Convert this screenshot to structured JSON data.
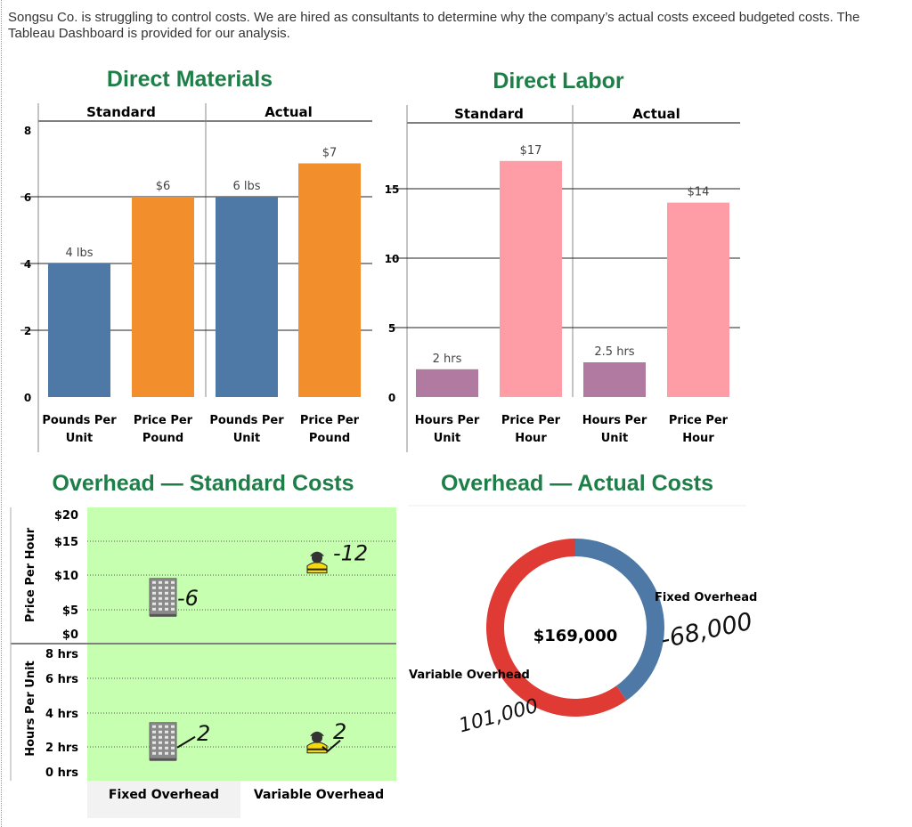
{
  "intro_text": "Songsu Co. is struggling to control costs. We are hired as consultants to determine why the company’s actual costs exceed budgeted costs. The Tableau Dashboard is provided for our analysis.",
  "colors": {
    "title_green": "#1e7e47",
    "blue": "#4e79a7",
    "orange": "#f28e2b",
    "purple": "#b07aa1",
    "pink": "#ff9da7",
    "red": "#e03a34",
    "panel_green": "#c6ffb0"
  },
  "chart_data": [
    {
      "type": "bar",
      "title": "Direct Materials",
      "panels": [
        "Standard",
        "Actual"
      ],
      "categories": [
        "Pounds Per Unit",
        "Price Per Pound",
        "Pounds Per Unit",
        "Price Per Pound"
      ],
      "values": [
        4,
        6,
        6,
        7
      ],
      "data_labels": [
        "4 lbs",
        "$6",
        "6 lbs",
        "$7"
      ],
      "ylim": [
        0,
        9
      ],
      "yticks": [
        "0",
        "2",
        "4",
        "6",
        "8"
      ],
      "grid": true
    },
    {
      "type": "bar",
      "title": "Direct Labor",
      "panels": [
        "Standard",
        "Actual"
      ],
      "categories": [
        "Hours Per Unit",
        "Price Per Hour",
        "Hours Per Unit",
        "Price Per Hour"
      ],
      "values": [
        2,
        17,
        2.5,
        14
      ],
      "data_labels": [
        "2 hrs",
        "$17",
        "2.5 hrs",
        "$14"
      ],
      "ylim": [
        0,
        20
      ],
      "yticks": [
        "0",
        "5",
        "10",
        "15"
      ],
      "grid": true
    },
    {
      "type": "scatter",
      "title": "Overhead — Standard Costs",
      "categories": [
        "Fixed Overhead",
        "Variable Overhead"
      ],
      "rows": [
        {
          "ylabel": "Price Per Hour",
          "yticks": [
            "$0",
            "$5",
            "$10",
            "$15",
            "$20"
          ],
          "ylim": [
            0,
            20
          ],
          "values": [
            6,
            12
          ],
          "handwritten": [
            "-6",
            "-12"
          ]
        },
        {
          "ylabel": "Hours Per Unit",
          "yticks": [
            "0 hrs",
            "2 hrs",
            "4 hrs",
            "6 hrs",
            "8 hrs"
          ],
          "ylim": [
            0,
            8
          ],
          "values": [
            2,
            2
          ],
          "handwritten": [
            "-2",
            "2"
          ]
        }
      ],
      "icons": [
        "building-icon",
        "worker-icon"
      ]
    },
    {
      "type": "pie",
      "title": "Overhead — Actual Costs",
      "center_label": "$169,000",
      "labels": [
        "Fixed Overhead",
        "Variable Overhead"
      ],
      "values": [
        68000,
        101000
      ],
      "handwritten": [
        "-68,000",
        "101,000"
      ]
    }
  ]
}
